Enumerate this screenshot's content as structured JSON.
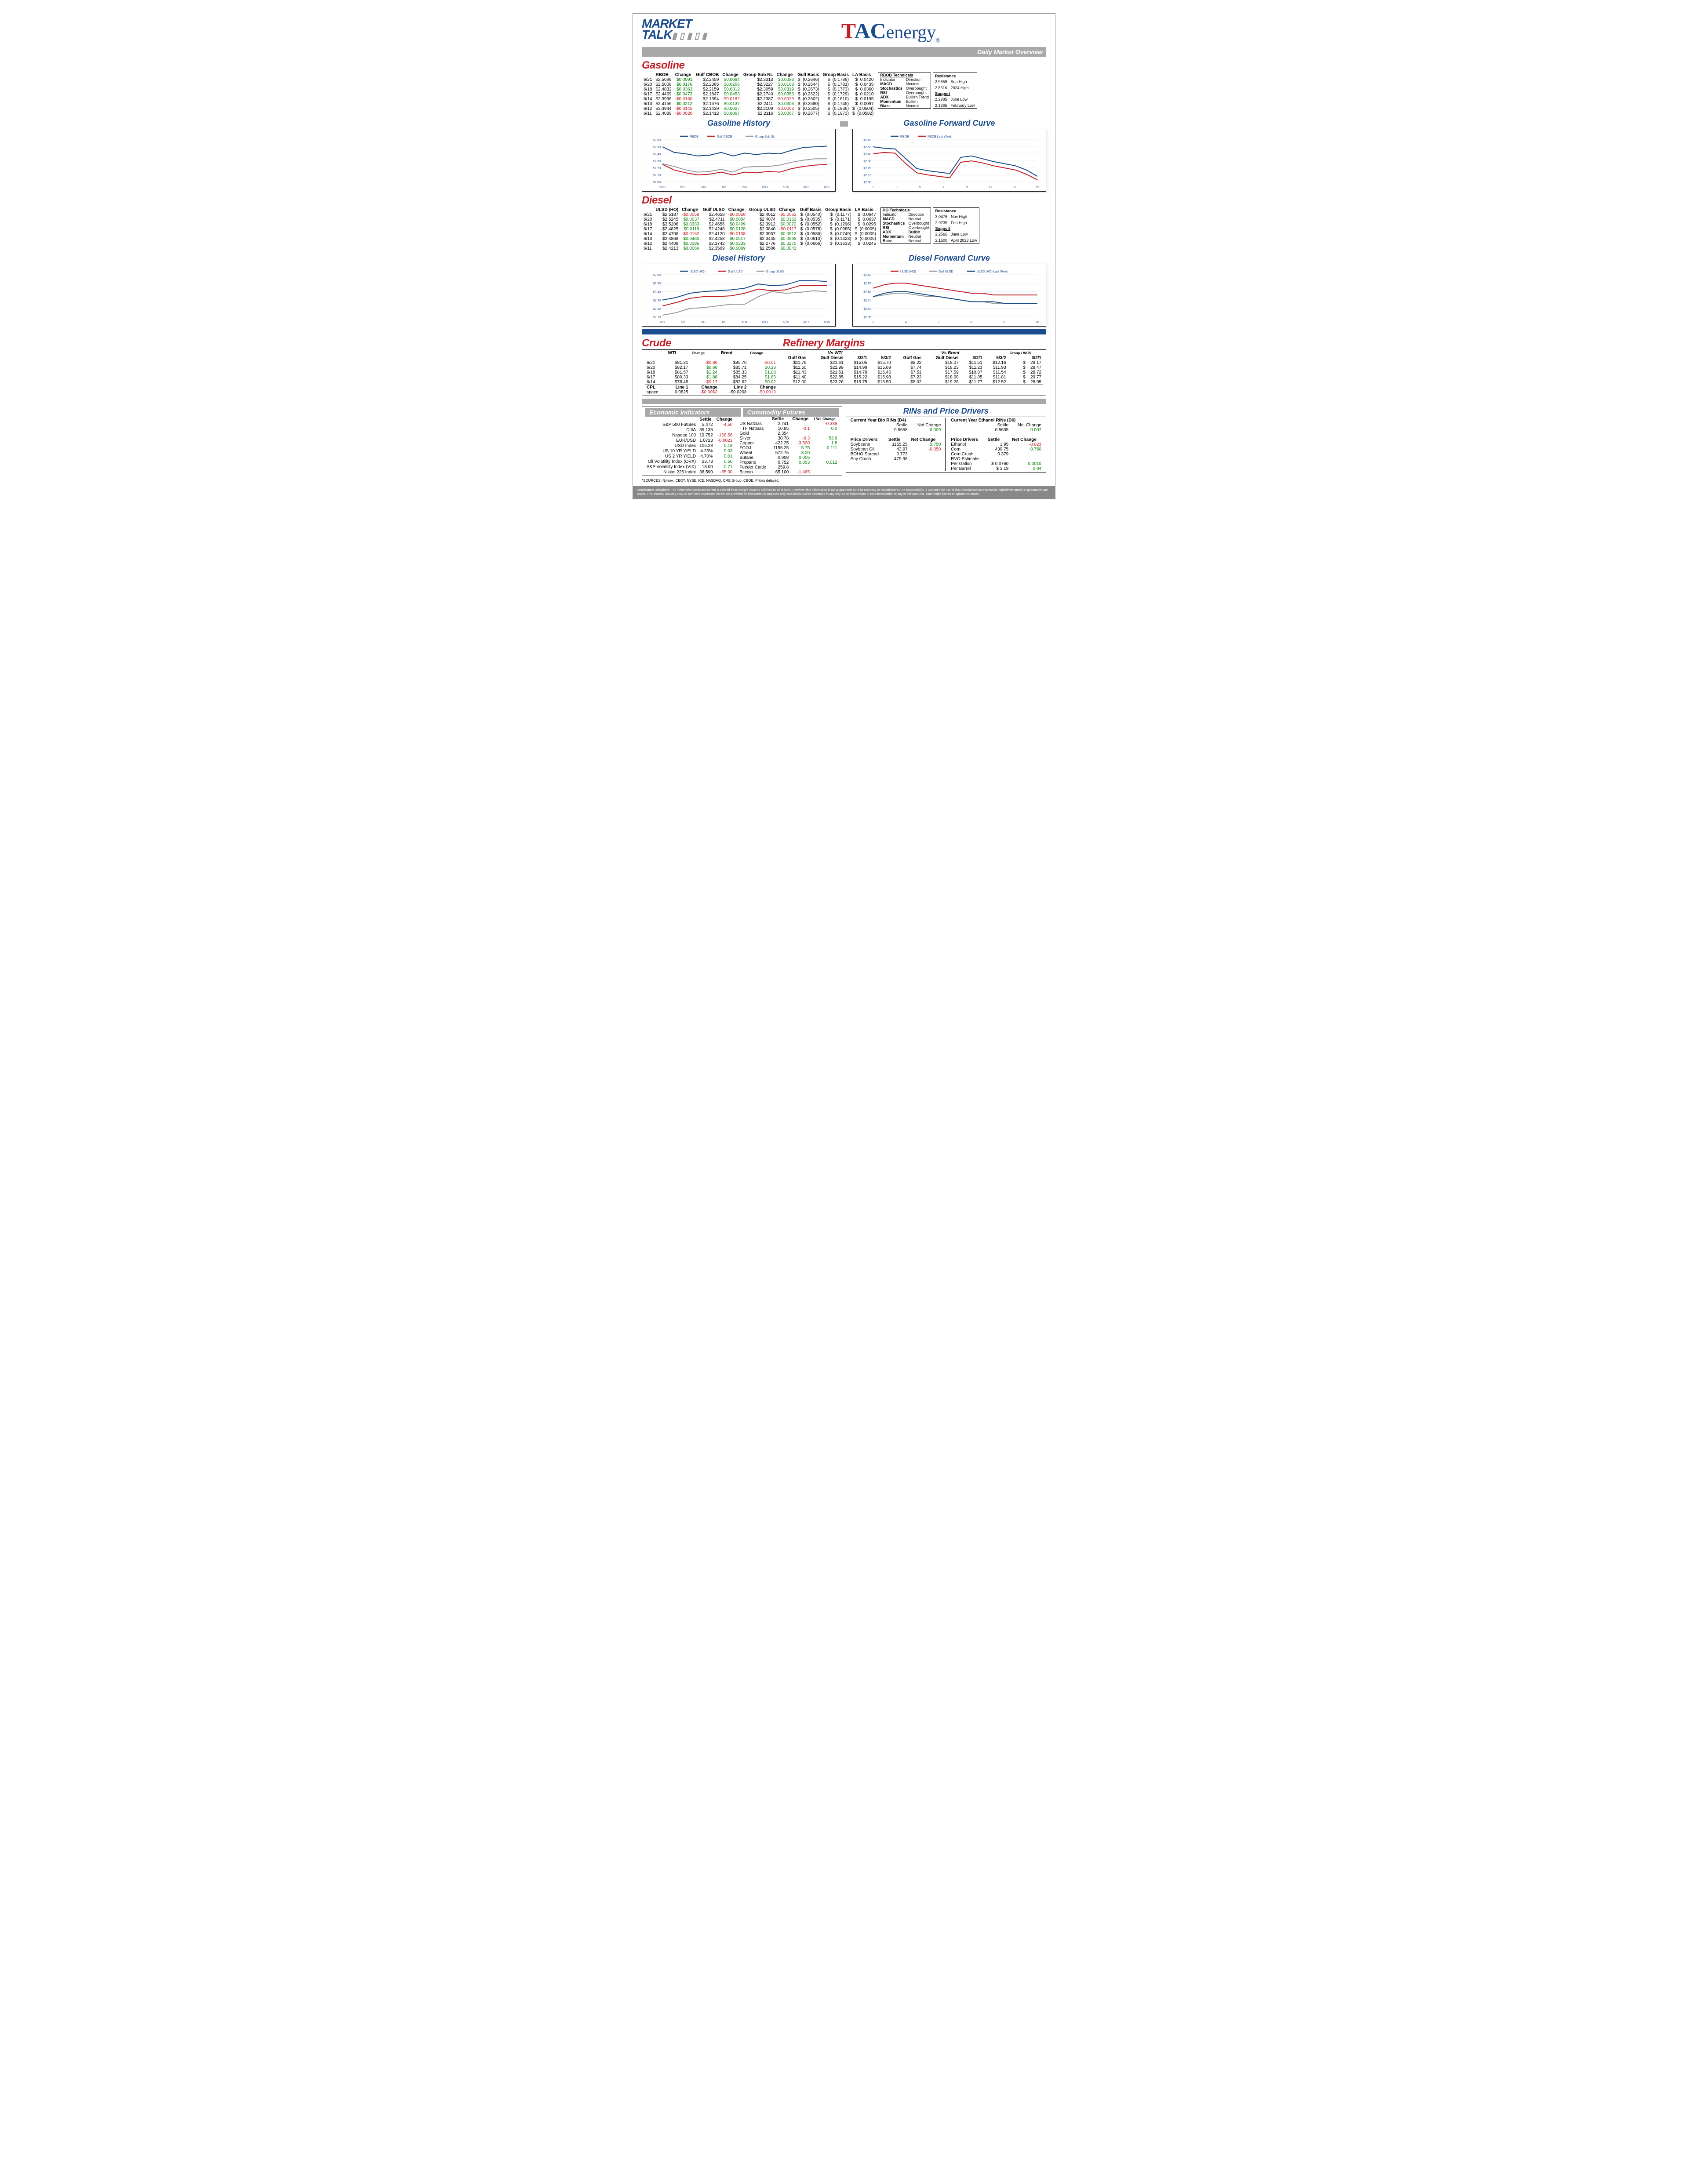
{
  "header": {
    "marketTalk": "MARKET TALK",
    "brand": "TACenergy",
    "subtitle": "Daily Market Overview"
  },
  "gasoline": {
    "title": "Gasoline",
    "headers": [
      "",
      "RBOB",
      "Change",
      "Gulf CBOB",
      "Change",
      "Group Sub NL",
      "Change",
      "Gulf Basis",
      "Group Basis",
      "LA Basis"
    ],
    "rows": [
      [
        "6/21",
        "$2.5099",
        "$0.0091",
        "$2.2459",
        "$0.0094",
        "$2.3313",
        "$0.0086",
        "(0.2646)",
        "(0.1789)",
        "0.0420"
      ],
      [
        "6/20",
        "$2.5008",
        "$0.0176",
        "$2.2365",
        "$0.0206",
        "$2.3227",
        "$0.0168",
        "(0.2644)",
        "(0.1781)",
        "0.0435"
      ],
      [
        "6/18",
        "$2.4832",
        "$0.0363",
        "$2.2159",
        "$0.0312",
        "$2.3059",
        "$0.0319",
        "(0.2673)",
        "(0.1773)",
        "0.0360"
      ],
      [
        "6/17",
        "$2.4469",
        "$0.0473",
        "$2.1847",
        "$0.0453",
        "$2.2740",
        "$0.0353",
        "(0.2622)",
        "(0.1729)",
        "0.0210"
      ],
      [
        "6/14",
        "$2.3996",
        "-$0.0160",
        "$2.1394",
        "-$0.0182",
        "$2.2387",
        "-$0.0025",
        "(0.2602)",
        "(0.1610)",
        "0.0195"
      ],
      [
        "6/13",
        "$2.4156",
        "$0.0212",
        "$2.1576",
        "$0.0137",
        "$2.2411",
        "$0.0303",
        "(0.2580)",
        "(0.1745)",
        "0.0097"
      ],
      [
        "6/12",
        "$2.3944",
        "-$0.0145",
        "$2.1439",
        "$0.0027",
        "$2.2109",
        "-$0.0008",
        "(0.2505)",
        "(0.1836)",
        "(0.0504)"
      ],
      [
        "6/11",
        "$2.4089",
        "-$0.0020",
        "$2.1412",
        "$0.0067",
        "$2.2116",
        "$0.0067",
        "(0.2677)",
        "(0.1973)",
        "(0.0582)"
      ]
    ],
    "tech": {
      "title": "RBOB Technicals",
      "ind": [
        [
          "MACD",
          "Neutral"
        ],
        [
          "Stochastics",
          "Overbought"
        ],
        [
          "RSI",
          "Overbought"
        ],
        [
          "ADX",
          "Bullish Trend"
        ],
        [
          "Momentum",
          "Bullish"
        ],
        [
          "Bias:",
          "Neutral"
        ]
      ],
      "res": [
        [
          "2.9859",
          "Sep High"
        ],
        [
          "2.8516",
          "2024 High"
        ]
      ],
      "sup": [
        [
          "2.2985",
          "June Low"
        ],
        [
          "2.1365",
          "February Low"
        ]
      ]
    },
    "historyChart": {
      "title": "Gasoline History",
      "ylim": [
        2.0,
        2.6
      ],
      "yticks": [
        2.0,
        2.1,
        2.2,
        2.3,
        2.4,
        2.5,
        2.6
      ],
      "xlabels": [
        "5/28",
        "5/31",
        "6/3",
        "6/6",
        "6/9",
        "6/12",
        "6/15",
        "6/18",
        "6/21"
      ],
      "series": [
        {
          "name": "RBOB",
          "color": "#1a4b8c",
          "y": [
            2.5,
            2.42,
            2.4,
            2.37,
            2.38,
            2.42,
            2.37,
            2.41,
            2.39,
            2.41,
            2.4,
            2.45,
            2.49,
            2.5,
            2.51
          ]
        },
        {
          "name": "Gulf CBOB",
          "color": "#c41e25",
          "y": [
            2.25,
            2.17,
            2.13,
            2.1,
            2.11,
            2.14,
            2.1,
            2.14,
            2.13,
            2.15,
            2.14,
            2.19,
            2.22,
            2.24,
            2.25
          ]
        },
        {
          "name": "Group Sub NL",
          "color": "#9a9a9a",
          "y": [
            2.26,
            2.22,
            2.17,
            2.14,
            2.15,
            2.18,
            2.14,
            2.21,
            2.22,
            2.22,
            2.24,
            2.28,
            2.31,
            2.33,
            2.33
          ]
        }
      ]
    },
    "forwardChart": {
      "title": "Gasoline Forward Curve",
      "ylim": [
        2.0,
        2.6
      ],
      "yticks": [
        2.0,
        2.1,
        2.2,
        2.3,
        2.4,
        2.5,
        2.6
      ],
      "xlabels": [
        "1",
        "3",
        "5",
        "7",
        "9",
        "11",
        "13",
        "15"
      ],
      "series": [
        {
          "name": "RBOB",
          "color": "#1a4b8c",
          "y": [
            2.5,
            2.48,
            2.47,
            2.33,
            2.19,
            2.16,
            2.14,
            2.12,
            2.35,
            2.37,
            2.33,
            2.29,
            2.26,
            2.23,
            2.17,
            2.08
          ]
        },
        {
          "name": "RBOB Last Week",
          "color": "#c41e25",
          "y": [
            2.4,
            2.42,
            2.41,
            2.26,
            2.13,
            2.1,
            2.08,
            2.06,
            2.28,
            2.3,
            2.27,
            2.23,
            2.2,
            2.17,
            2.11,
            2.03
          ]
        }
      ]
    }
  },
  "diesel": {
    "title": "Diesel",
    "headers": [
      "",
      "ULSD (HO)",
      "Change",
      "Gulf ULSD",
      "Change",
      "Group ULSD",
      "Change",
      "Gulf Basis",
      "Group Basis",
      "LA Basis"
    ],
    "rows": [
      [
        "6/21",
        "$2.5187",
        "-$0.0058",
        "$2.4658",
        "-$0.0058",
        "$2.4012",
        "-$0.0062",
        "(0.0540)",
        "(0.1177)",
        "0.0647"
      ],
      [
        "6/20",
        "$2.5245",
        "$0.0037",
        "$2.4711",
        "$0.0054",
        "$2.4074",
        "$0.0162",
        "(0.0535)",
        "(0.1171)",
        "0.0637"
      ],
      [
        "6/18",
        "$2.5208",
        "$0.0383",
        "$2.4656",
        "$0.0409",
        "$2.3912",
        "$0.0072",
        "(0.0552)",
        "(0.1296)",
        "0.0295"
      ],
      [
        "6/17",
        "$2.4825",
        "$0.0119",
        "$2.4248",
        "$0.0128",
        "$2.3840",
        "-$0.0117",
        "(0.0578)",
        "(0.0985)",
        "(0.0005)"
      ],
      [
        "6/14",
        "$2.4706",
        "-$0.0162",
        "$2.4120",
        "-$0.0138",
        "$2.3957",
        "$0.0512",
        "(0.0586)",
        "(0.0749)",
        "(0.0005)"
      ],
      [
        "6/13",
        "$2.4868",
        "$0.0460",
        "$2.4258",
        "$0.0517",
        "$2.3445",
        "$0.0669",
        "(0.0610)",
        "(0.1423)",
        "(0.0005)"
      ],
      [
        "6/12",
        "$2.4408",
        "$0.0195",
        "$2.3742",
        "$0.0233",
        "$2.2776",
        "$0.0270",
        "(0.0666)",
        "(0.1633)",
        "0.0245"
      ],
      [
        "6/11",
        "$2.4213",
        "$0.0066",
        "$2.3509",
        "$0.0069",
        "$2.2506",
        "$0.0043",
        "",
        "",
        ""
      ]
    ],
    "tech": {
      "title": "HO Technicals",
      "ind": [
        [
          "MACD",
          "Neutral"
        ],
        [
          "Stochastics",
          "Overbought"
        ],
        [
          "RSI",
          "Overbought"
        ],
        [
          "ADX",
          "Bullish"
        ],
        [
          "Momentum",
          "Neutral"
        ],
        [
          "Bias:",
          "Neutral"
        ]
      ],
      "res": [
        [
          "3.0476",
          "Nov High"
        ],
        [
          "2.9735",
          "Feb High"
        ]
      ],
      "sup": [
        [
          "2.2566",
          "June Low"
        ],
        [
          "2.1500",
          "April 2023 Low"
        ]
      ]
    },
    "historyChart": {
      "title": "Diesel History",
      "ylim": [
        2.1,
        2.6
      ],
      "yticks": [
        2.1,
        2.2,
        2.3,
        2.4,
        2.5,
        2.6
      ],
      "xlabels": [
        "6/3",
        "6/5",
        "6/7",
        "6/9",
        "6/11",
        "6/13",
        "6/15",
        "6/17",
        "6/19"
      ],
      "series": [
        {
          "name": "ULSD (HO)",
          "color": "#1a4b8c",
          "y": [
            2.3,
            2.33,
            2.38,
            2.4,
            2.41,
            2.42,
            2.44,
            2.49,
            2.47,
            2.48,
            2.53,
            2.53,
            2.52
          ]
        },
        {
          "name": "Gulf ULSD",
          "color": "#c41e25",
          "y": [
            2.23,
            2.27,
            2.32,
            2.34,
            2.34,
            2.35,
            2.38,
            2.43,
            2.41,
            2.42,
            2.47,
            2.47,
            2.47
          ]
        },
        {
          "name": "Group ULSD",
          "color": "#9a9a9a",
          "y": [
            2.12,
            2.15,
            2.2,
            2.21,
            2.23,
            2.25,
            2.25,
            2.34,
            2.4,
            2.38,
            2.39,
            2.41,
            2.4
          ]
        }
      ]
    },
    "forwardChart": {
      "title": "Diesel Forward Curve",
      "ylim": [
        2.35,
        2.6
      ],
      "yticks": [
        2.35,
        2.4,
        2.45,
        2.5,
        2.55,
        2.6
      ],
      "xlabels": [
        "1",
        "4",
        "7",
        "10",
        "13",
        "16"
      ],
      "series": [
        {
          "name": "ULSD (HO)",
          "color": "#c41e25",
          "y": [
            2.52,
            2.54,
            2.55,
            2.55,
            2.54,
            2.53,
            2.52,
            2.51,
            2.5,
            2.49,
            2.49,
            2.48,
            2.48,
            2.48,
            2.48,
            2.48
          ]
        },
        {
          "name": "Gulf ULSD",
          "color": "#9a9a9a",
          "y": [
            2.47,
            2.48,
            2.49,
            2.49,
            2.48,
            2.47,
            2.47,
            2.46,
            2.45,
            2.44,
            2.44,
            2.43,
            2.43,
            2.43,
            2.43,
            2.43
          ]
        },
        {
          "name": "ULSD (HO) Last Week",
          "color": "#1a4b8c",
          "y": [
            2.47,
            2.49,
            2.5,
            2.5,
            2.49,
            2.48,
            2.47,
            2.46,
            2.45,
            2.44,
            2.44,
            2.44,
            2.43,
            2.43,
            2.43,
            2.43
          ]
        }
      ]
    }
  },
  "crude": {
    "title": "Crude",
    "rows": [
      [
        "6/21",
        "$81.31",
        "-$0.86",
        "$85.70",
        "-$0.01"
      ],
      [
        "6/20",
        "$82.17",
        "$0.60",
        "$85.71",
        "$0.38"
      ],
      [
        "6/18",
        "$81.57",
        "$1.24",
        "$85.33",
        "$1.08"
      ],
      [
        "6/17",
        "$80.33",
        "$1.88",
        "$84.25",
        "$1.63"
      ],
      [
        "6/14",
        "$78.45",
        "-$0.17",
        "$82.62",
        "$0.02"
      ]
    ],
    "cpl": [
      "CPL",
      "Line 1",
      "Change",
      "Line 2",
      "Change"
    ],
    "space": [
      "space",
      "0.0825",
      "-$0.0062",
      "-$0.0208",
      "-$0.0013"
    ]
  },
  "margins": {
    "title": "Refinery Margins",
    "headers": [
      "",
      "Gulf Gas",
      "Gulf Diesel",
      "3/2/1",
      "5/3/2",
      "Gulf Gas",
      "Gulf Diesel",
      "3/2/1",
      "5/3/2",
      "3/2/1"
    ],
    "rows": [
      [
        "$11.76",
        "$21.61",
        "$15.05",
        "$15.70",
        "$8.22",
        "$18.07",
        "$11.51",
        "$12.16",
        "29.17"
      ],
      [
        "$11.50",
        "$21.99",
        "$14.99",
        "$15.69",
        "$7.74",
        "$18.23",
        "$11.23",
        "$11.93",
        "28.47"
      ],
      [
        "$11.43",
        "$21.51",
        "$14.79",
        "$15.46",
        "$7.51",
        "$17.59",
        "$10.87",
        "$11.54",
        "28.72"
      ],
      [
        "$11.40",
        "$22.85",
        "$15.22",
        "$15.98",
        "$7.23",
        "$18.68",
        "$11.05",
        "$11.81",
        "29.77"
      ],
      [
        "$12.00",
        "$23.26",
        "$15.75",
        "$16.50",
        "$8.02",
        "$19.28",
        "$11.77",
        "$12.52",
        "28.95"
      ]
    ]
  },
  "econ": {
    "title": "Economic Indicators",
    "rows": [
      [
        "S&P 500 Futures",
        "5,472",
        "-4.50"
      ],
      [
        "DJIA",
        "39,135",
        ""
      ],
      [
        "Nasdaq 100",
        "19,752",
        "-156.56"
      ],
      [
        "EUR/USD",
        "1.0723",
        "-0.0021"
      ],
      [
        "USD Index",
        "105.23",
        "0.18"
      ],
      [
        "US 10 YR YIELD",
        "4.25%",
        "0.03"
      ],
      [
        "US 2 YR YIELD",
        "4.70%",
        "0.01"
      ],
      [
        "Oil Volatility Index (OVX)",
        "23.73",
        "0.50"
      ],
      [
        "S&P Volatility Index (VIX)",
        "18.00",
        "0.71"
      ],
      [
        "Nikkei 225 Index",
        "38,590",
        "-85.00"
      ]
    ]
  },
  "commod": {
    "title": "Commodity Futures",
    "rows": [
      [
        "US NatGas",
        "2.741",
        "",
        "-0.388"
      ],
      [
        "TTF NatGas",
        "10.85",
        "-0.1",
        "0.0"
      ],
      [
        "Gold",
        "2,354",
        "",
        ""
      ],
      [
        "Silver",
        "30.78",
        "-0.3",
        "53.6"
      ],
      [
        "Copper",
        "422.25",
        "-3.500",
        "1.8"
      ],
      [
        "FCOJ",
        "1155.25",
        "5.75",
        "0.111"
      ],
      [
        "Wheat",
        "572.75",
        "3.00",
        ""
      ],
      [
        "Butane",
        "0.908",
        "0.006",
        ""
      ],
      [
        "Propane",
        "0.752",
        "0.003",
        "0.012"
      ],
      [
        "Feeder Cattle",
        "259.8",
        "",
        ""
      ],
      [
        "Bitcoin",
        "65,100",
        "-1,465",
        ""
      ]
    ]
  },
  "rins": {
    "title": "RINs and Price Drivers",
    "d4": {
      "label": "Current Year Bio RINs (D4)",
      "settle": "0.5658",
      "chg": "0.009"
    },
    "d6": {
      "label": "Current Year Ethanol RINs (D6)",
      "settle": "0.5635",
      "chg": "0.007"
    },
    "left": [
      [
        "Soybeans",
        "1155.25",
        "5.750"
      ],
      [
        "",
        "",
        ""
      ],
      [
        "Soybean Oil",
        "43.97",
        "-0.050"
      ],
      [
        "",
        "",
        ""
      ],
      [
        "BOHO Spread",
        "0.773",
        ""
      ],
      [
        "",
        "",
        ""
      ],
      [
        "Soy Crush",
        "479.98",
        ""
      ]
    ],
    "right": [
      [
        "Ethanol",
        "1.95",
        "-0.023"
      ],
      [
        "",
        "",
        ""
      ],
      [
        "Corn",
        "439.75",
        "0.750"
      ],
      [
        "",
        "",
        ""
      ],
      [
        "Corn Crush",
        "0.379",
        ""
      ],
      [
        "RVO Estimate",
        "",
        ""
      ],
      [
        "Per Gallon",
        "$   0.0760",
        "0.0010"
      ],
      [
        "Per Barrel",
        "$      3.19",
        "0.04"
      ]
    ]
  },
  "sources": "*SOURCES: Nymex, CBOT, NYSE, ICE, NASDAQ, CME Group, CBOE.   Prices delayed.",
  "disclaimer": "Disclaimer: The information contained herein is derived from multiple sources believed to be reliable. However, this information is not guaranteed as to its accuracy or completeness. No responsibility is assumed for use of this material and no express or implied warranties or guarantees are made. This material and any view or comment expressed herein are provided for informational purposes only and should not be construed in any way as an inducement or recommendation to buy or sell products, commodity futures or options contracts."
}
